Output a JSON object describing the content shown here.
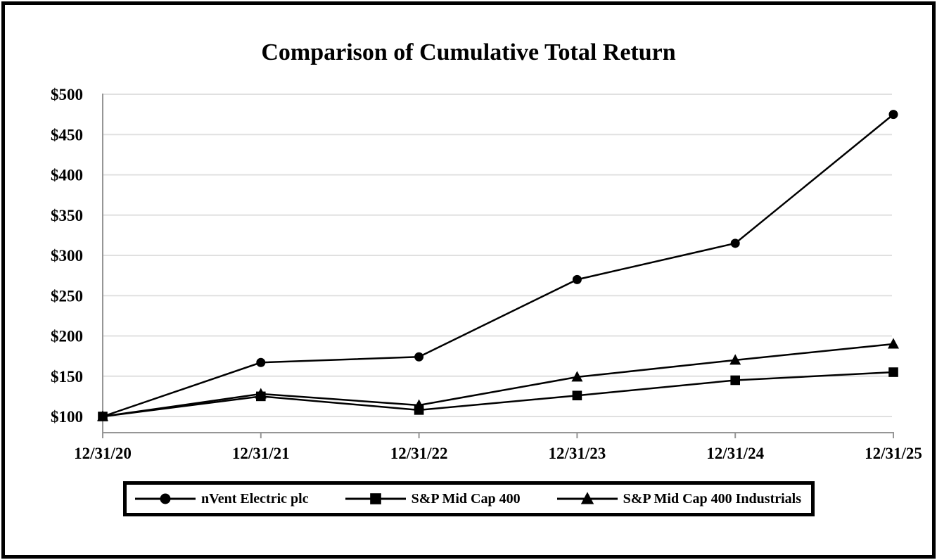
{
  "chart_data": {
    "type": "line",
    "title": "Comparison of Cumulative Total Return",
    "categories": [
      "12/31/20",
      "12/31/21",
      "12/31/22",
      "12/31/23",
      "12/31/24",
      "12/31/25"
    ],
    "series": [
      {
        "name": "nVent Electric plc",
        "marker": "circle",
        "color": "#000000",
        "values": [
          100,
          167,
          174,
          270,
          315,
          475
        ]
      },
      {
        "name": "S&P Mid Cap 400",
        "marker": "square",
        "color": "#000000",
        "values": [
          100,
          125,
          108,
          126,
          145,
          155
        ]
      },
      {
        "name": "S&P Mid Cap 400 Industrials",
        "marker": "triangle",
        "color": "#000000",
        "values": [
          100,
          128,
          114,
          149,
          170,
          190
        ]
      }
    ],
    "y_axis": {
      "tick_labels": [
        "$500",
        "$450",
        "$400",
        "$350",
        "$300",
        "$250",
        "$200",
        "$150",
        "$100"
      ],
      "tick_values": [
        500,
        450,
        400,
        350,
        300,
        250,
        200,
        150,
        100
      ],
      "min": 80,
      "max": 500,
      "currency": "$"
    },
    "grid": "horizontal-only",
    "legend_position": "bottom"
  },
  "colors": {
    "series_line": "#000000",
    "gridline": "#e0e0e0",
    "axis_line": "#969696",
    "frame": "#000000",
    "background": "#ffffff",
    "text": "#000000"
  }
}
